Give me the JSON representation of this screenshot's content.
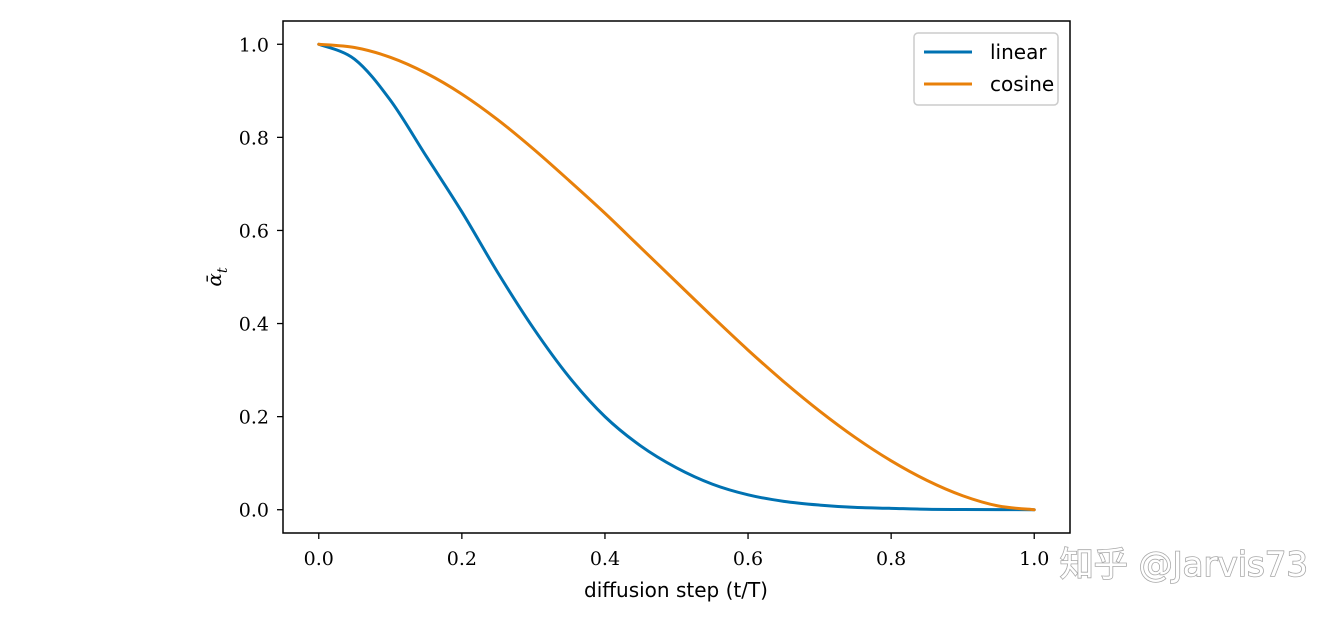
{
  "chart_data": {
    "type": "line",
    "title": "",
    "xlabel": "diffusion step (t/T)",
    "ylabel": "ᾱ",
    "ylabel_subscript": "t",
    "xlim": [
      -0.05,
      1.05
    ],
    "ylim": [
      -0.05,
      1.05
    ],
    "xticks": [
      0.0,
      0.2,
      0.4,
      0.6,
      0.8,
      1.0
    ],
    "xtick_labels": [
      "0.0",
      "0.2",
      "0.4",
      "0.6",
      "0.8",
      "1.0"
    ],
    "yticks": [
      0.0,
      0.2,
      0.4,
      0.6,
      0.8,
      1.0
    ],
    "ytick_labels": [
      "0.0",
      "0.2",
      "0.4",
      "0.6",
      "0.8",
      "1.0"
    ],
    "grid": false,
    "legend_position": "top-right",
    "x": [
      0.0,
      0.05,
      0.1,
      0.15,
      0.2,
      0.25,
      0.3,
      0.35,
      0.4,
      0.45,
      0.5,
      0.55,
      0.6,
      0.65,
      0.7,
      0.75,
      0.8,
      0.85,
      0.9,
      0.95,
      1.0
    ],
    "series": [
      {
        "name": "linear",
        "color": "#0072b2",
        "values": [
          1.0,
          0.968,
          0.88,
          0.76,
          0.64,
          0.51,
          0.39,
          0.285,
          0.2,
          0.137,
          0.09,
          0.055,
          0.032,
          0.018,
          0.01,
          0.005,
          0.003,
          0.001,
          0.0005,
          0.0002,
          0.0
        ]
      },
      {
        "name": "cosine",
        "color": "#e8800a",
        "values": [
          1.0,
          0.993,
          0.972,
          0.938,
          0.893,
          0.838,
          0.775,
          0.707,
          0.637,
          0.563,
          0.489,
          0.415,
          0.343,
          0.275,
          0.212,
          0.155,
          0.105,
          0.063,
          0.03,
          0.008,
          0.0
        ]
      }
    ]
  },
  "watermark": {
    "text": "知乎 @Jarvis73"
  }
}
